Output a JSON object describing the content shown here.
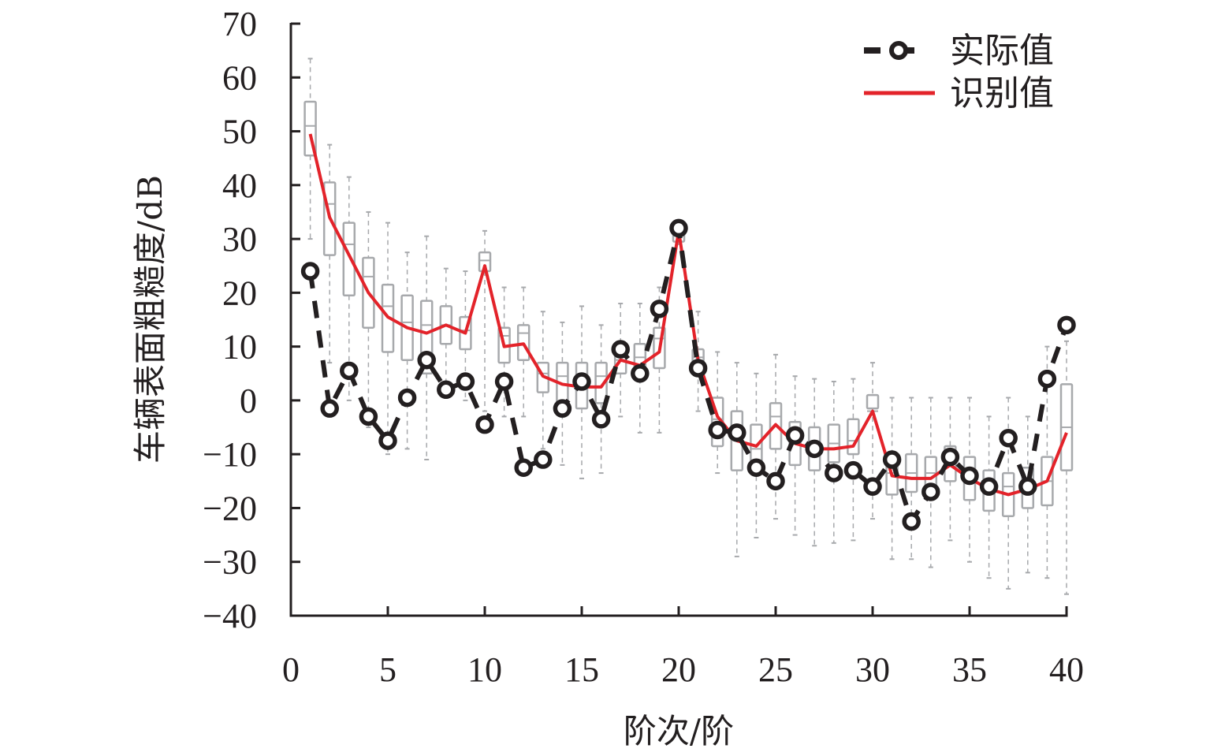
{
  "chart_data": {
    "type": "line",
    "title": "",
    "xlabel": "阶次/阶",
    "ylabel": "车辆表面粗糙度/dB",
    "xlim": [
      0,
      40
    ],
    "ylim": [
      -40,
      70
    ],
    "x_ticks": [
      "0",
      "5",
      "10",
      "15",
      "20",
      "25",
      "30",
      "35",
      "40"
    ],
    "y_ticks": [
      "70",
      "60",
      "50",
      "40",
      "30",
      "20",
      "10",
      "0",
      "−10",
      "−20",
      "−30",
      "−40"
    ],
    "x_tick_values": [
      0,
      5,
      10,
      15,
      20,
      25,
      30,
      35,
      40
    ],
    "y_tick_values": [
      70,
      60,
      50,
      40,
      30,
      20,
      10,
      0,
      -10,
      -20,
      -30,
      -40
    ],
    "legend_position": "top-right",
    "x": [
      1,
      2,
      3,
      4,
      5,
      6,
      7,
      8,
      9,
      10,
      11,
      12,
      13,
      14,
      15,
      16,
      17,
      18,
      19,
      20,
      21,
      22,
      23,
      24,
      25,
      26,
      27,
      28,
      29,
      30,
      31,
      32,
      33,
      34,
      35,
      36,
      37,
      38,
      39,
      40
    ],
    "series": [
      {
        "name": "实际值",
        "style": "dashed-circle",
        "color": "#231f20",
        "values": [
          24,
          -1.5,
          5.5,
          -3,
          -7.5,
          0.5,
          7.5,
          2,
          3.5,
          -4.5,
          3.5,
          -12.5,
          -11,
          -1.5,
          3.5,
          -3.5,
          9.5,
          5,
          17,
          32,
          6,
          -5.5,
          -6,
          -12.5,
          -15,
          -6.5,
          -9,
          -13.5,
          -13,
          -16,
          -11,
          -22.5,
          -17,
          -10.5,
          -14,
          -16,
          -7,
          -16,
          4,
          14
        ]
      },
      {
        "name": "识别值",
        "style": "solid",
        "color": "#e3232a",
        "values": [
          49.5,
          34,
          27,
          20,
          15.5,
          13.5,
          12.5,
          14,
          12.5,
          25,
          10,
          10.5,
          4.5,
          3,
          2.5,
          2.5,
          7.5,
          6.5,
          9,
          31.5,
          7.5,
          -3,
          -7.5,
          -8.5,
          -4.5,
          -8,
          -9,
          -9,
          -8.5,
          -2,
          -14,
          -14.5,
          -14.5,
          -12,
          -14.5,
          -16.5,
          -17.5,
          -16.5,
          -15,
          -6
        ]
      }
    ],
    "boxplot": {
      "color": "#a7a9ac",
      "whisker_low": [
        30,
        7,
        0,
        -5,
        -10,
        -9,
        -11,
        1,
        0,
        -2,
        -3,
        -3,
        -9,
        -12,
        -14.5,
        -13.5,
        -3,
        -6,
        -6,
        29,
        -2,
        -13.5,
        -29,
        -25.5,
        -22,
        -25,
        -27,
        -26.5,
        -26,
        -22,
        -29.5,
        -29.5,
        -31,
        -26,
        -30,
        -33,
        -35,
        -32,
        -33,
        -36
      ],
      "q1": [
        45.5,
        27,
        19.5,
        13.5,
        9,
        7.5,
        5,
        10.5,
        9.5,
        24,
        7,
        7.5,
        1.5,
        -1,
        -1.5,
        -0.5,
        5,
        4,
        6,
        29.5,
        5.5,
        -8.5,
        -13,
        -12.5,
        -9,
        -12,
        -13,
        -11.5,
        -10,
        -1.5,
        -17.5,
        -17,
        -17.5,
        -15,
        -18.5,
        -20.5,
        -21.5,
        -20,
        -19.5,
        -13
      ],
      "median": [
        51,
        36.5,
        29,
        23,
        17.5,
        14.5,
        14,
        14,
        13,
        26,
        12,
        12.5,
        5,
        4.5,
        3.5,
        4.5,
        7.5,
        8,
        11.5,
        31.5,
        8,
        -3.5,
        -6,
        -9,
        -3,
        -6.5,
        -8,
        -8,
        -7.5,
        -2,
        -13.5,
        -13.5,
        -13.5,
        -11,
        -13,
        -15.5,
        -16,
        -15,
        -15,
        -5
      ],
      "q3": [
        55.5,
        40.5,
        33,
        26.5,
        21.5,
        19.5,
        18.5,
        17.5,
        15.5,
        27.5,
        13.5,
        14,
        7,
        7,
        7,
        7,
        10.5,
        10.5,
        13.5,
        32,
        9.5,
        0.5,
        -2,
        -4.5,
        -0.5,
        -4,
        -5,
        -4.5,
        -3.5,
        1,
        -10,
        -10,
        -10.5,
        -8.5,
        -10.5,
        -13,
        -13.5,
        -12.5,
        -10.5,
        3
      ],
      "whisker_high": [
        63.5,
        47.5,
        41.5,
        35,
        33,
        27.5,
        30.5,
        24.5,
        24,
        31.5,
        21,
        21,
        16.5,
        14.5,
        17.5,
        14,
        18,
        18,
        21,
        33.5,
        16.5,
        9,
        7,
        5,
        8.5,
        4.5,
        4,
        3.5,
        4,
        7,
        0.5,
        0.5,
        0.5,
        0.5,
        0.5,
        -3,
        0.5,
        -3,
        10,
        11
      ]
    }
  }
}
